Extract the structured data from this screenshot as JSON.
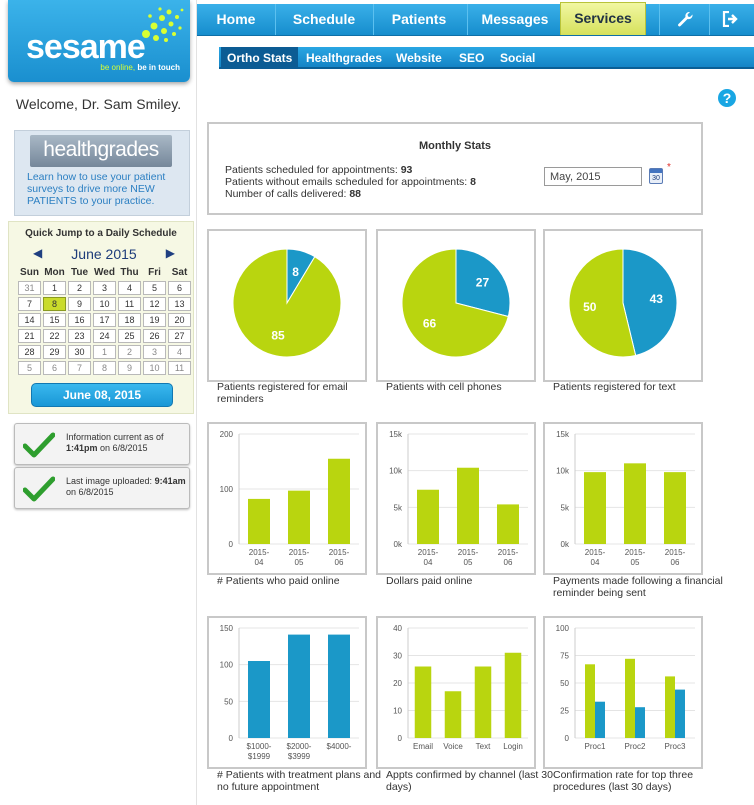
{
  "brand": {
    "name": "sesame",
    "tagline_a": "be online, ",
    "tagline_b": "be in touch"
  },
  "welcome": "Welcome, Dr. Sam Smiley.",
  "healthgrades_promo": {
    "logo_text": "healthgrades",
    "text": "Learn how to use your patient surveys to drive more NEW PATIENTS to your practice."
  },
  "calendar": {
    "title": "Quick Jump to a Daily Schedule",
    "month_label": "June 2015",
    "prev": "◀",
    "next": "▶",
    "weekdays": [
      "Sun",
      "Mon",
      "Tue",
      "Wed",
      "Thu",
      "Fri",
      "Sat"
    ],
    "weeks": [
      [
        "31",
        "1",
        "2",
        "3",
        "4",
        "5",
        "6"
      ],
      [
        "7",
        "8",
        "9",
        "10",
        "11",
        "12",
        "13"
      ],
      [
        "14",
        "15",
        "16",
        "17",
        "18",
        "19",
        "20"
      ],
      [
        "21",
        "22",
        "23",
        "24",
        "25",
        "26",
        "27"
      ],
      [
        "28",
        "29",
        "30",
        "1",
        "2",
        "3",
        "4"
      ],
      [
        "5",
        "6",
        "7",
        "8",
        "9",
        "10",
        "11"
      ]
    ],
    "selected_day": "8",
    "selected_date": "June 08, 2015"
  },
  "status": {
    "info_prefix": "Information current as of",
    "info_time": "1:41pm",
    "info_date": " on 6/8/2015",
    "upload_prefix": "Last image uploaded: ",
    "upload_time": "9:41am",
    "upload_date": "on 6/8/2015",
    "icon": "checkmark-icon",
    "icon_color": "#2e9e2e"
  },
  "nav": {
    "items": [
      "Home",
      "Schedule",
      "Patients",
      "Messages",
      "Services"
    ],
    "active": "Services",
    "icons": [
      "wrench-icon",
      "logout-icon"
    ]
  },
  "subnav": {
    "items": [
      "Ortho Stats",
      "Healthgrades",
      "Website",
      "SEO",
      "Social"
    ],
    "active": "Ortho Stats"
  },
  "help": "?",
  "monthly": {
    "title": "Monthly Stats",
    "scheduled_label": "Patients scheduled for appointments: ",
    "scheduled_value": "93",
    "no_email_label": "Patients without emails scheduled for appointments: ",
    "no_email_value": "8",
    "calls_label": "Number of calls delivered: ",
    "calls_value": "88",
    "month_value": "May, 2015",
    "required": "*"
  },
  "colors": {
    "green": "#b9d50f",
    "blue": "#1b98c8",
    "nav_blue": "#1f9bdc"
  },
  "chart_data": [
    {
      "type": "pie",
      "title": "Patients registered for email reminders",
      "slices": [
        {
          "label": "8",
          "value": 8,
          "color": "#1b98c8"
        },
        {
          "label": "85",
          "value": 85,
          "color": "#b9d50f"
        }
      ]
    },
    {
      "type": "pie",
      "title": "Patients with cell phones",
      "slices": [
        {
          "label": "27",
          "value": 27,
          "color": "#1b98c8"
        },
        {
          "label": "66",
          "value": 66,
          "color": "#b9d50f"
        }
      ]
    },
    {
      "type": "pie",
      "title": "Patients registered for text",
      "slices": [
        {
          "label": "43",
          "value": 43,
          "color": "#1b98c8"
        },
        {
          "label": "50",
          "value": 50,
          "color": "#b9d50f"
        }
      ]
    },
    {
      "type": "bar",
      "title": "# Patients who paid online",
      "categories": [
        [
          "2015-",
          "04"
        ],
        [
          "2015-",
          "05"
        ],
        [
          "2015-",
          "06"
        ]
      ],
      "yticks": [
        "0",
        "100",
        "200"
      ],
      "ylim": [
        0,
        200
      ],
      "series": [
        {
          "values": [
            82,
            97,
            155
          ],
          "color": "#b9d50f"
        }
      ]
    },
    {
      "type": "bar",
      "title": "Dollars paid online",
      "categories": [
        [
          "2015-",
          "04"
        ],
        [
          "2015-",
          "05"
        ],
        [
          "2015-",
          "06"
        ]
      ],
      "yticks": [
        "0k",
        "5k",
        "10k",
        "15k"
      ],
      "ylim": [
        0,
        15000
      ],
      "series": [
        {
          "values": [
            7400,
            10400,
            5400
          ],
          "color": "#b9d50f"
        }
      ]
    },
    {
      "type": "bar",
      "title": "Payments made following a financial reminder being sent",
      "categories": [
        [
          "2015-",
          "04"
        ],
        [
          "2015-",
          "05"
        ],
        [
          "2015-",
          "06"
        ]
      ],
      "yticks": [
        "0k",
        "5k",
        "10k",
        "15k"
      ],
      "ylim": [
        0,
        15000
      ],
      "series": [
        {
          "values": [
            9800,
            11000,
            9800
          ],
          "color": "#b9d50f"
        }
      ]
    },
    {
      "type": "bar",
      "title": "# Patients with treatment plans and no future appointment",
      "categories": [
        [
          "$1000-",
          "$1999"
        ],
        [
          "$2000-",
          "$3999"
        ],
        [
          "$4000-",
          ""
        ]
      ],
      "yticks": [
        "0",
        "50",
        "100",
        "150"
      ],
      "ylim": [
        0,
        150
      ],
      "series": [
        {
          "values": [
            105,
            141,
            141
          ],
          "color": "#1b98c8"
        }
      ]
    },
    {
      "type": "bar",
      "title": "Appts confirmed by channel (last 30 days)",
      "categories": [
        [
          "Email"
        ],
        [
          "Voice"
        ],
        [
          "Text"
        ],
        [
          "Login"
        ]
      ],
      "yticks": [
        "0",
        "10",
        "20",
        "30",
        "40"
      ],
      "ylim": [
        0,
        40
      ],
      "series": [
        {
          "values": [
            26,
            17,
            26,
            31
          ],
          "color": "#b9d50f"
        }
      ]
    },
    {
      "type": "bar",
      "title": "Confirmation rate for top three procedures (last 30 days)",
      "categories": [
        [
          "Proc1"
        ],
        [
          "Proc2"
        ],
        [
          "Proc3"
        ]
      ],
      "yticks": [
        "0",
        "25",
        "50",
        "75",
        "100"
      ],
      "ylim": [
        0,
        100
      ],
      "series": [
        {
          "values": [
            67,
            72,
            56
          ],
          "color": "#b9d50f"
        },
        {
          "values": [
            33,
            28,
            44
          ],
          "color": "#1b98c8"
        }
      ]
    }
  ]
}
